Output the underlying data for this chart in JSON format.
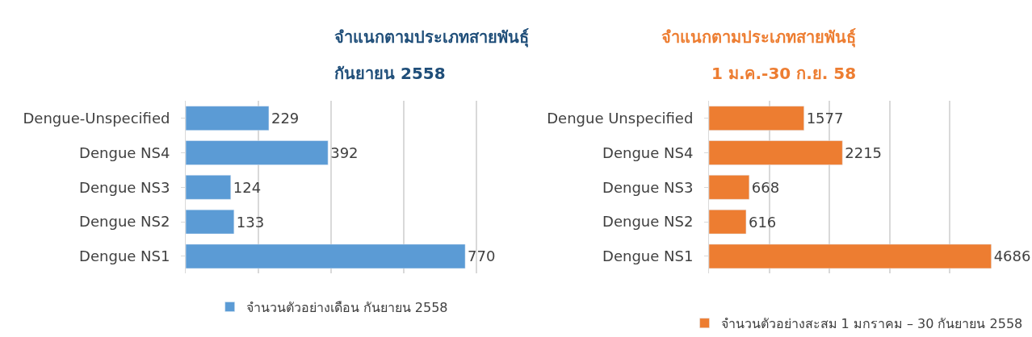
{
  "chart_data": [
    {
      "type": "bar",
      "orientation": "horizontal",
      "title": "จำแนกตามประเภทสายพันธุ์",
      "subtitle": "กันยายน 2558",
      "categories": [
        "Dengue-Unspecified",
        "Dengue NS4",
        "Dengue NS3",
        "Dengue NS2",
        "Dengue NS1"
      ],
      "series": [
        {
          "name": "จำนวนตัวอย่างเดือน กันยายน 2558",
          "color": "#5b9bd5",
          "values": [
            229,
            392,
            124,
            133,
            770
          ]
        }
      ],
      "grid": "x",
      "legend": "bottom",
      "data_labels": true,
      "tick_labels": "y"
    },
    {
      "type": "bar",
      "orientation": "horizontal",
      "title": "จำแนกตามประเภทสายพันธุ์",
      "subtitle": "1 ม.ค.-30 ก.ย. 58",
      "categories": [
        "Dengue Unspecified",
        "Dengue NS4",
        "Dengue NS3",
        "Dengue NS2",
        "Dengue NS1"
      ],
      "series": [
        {
          "name": "จำนวนตัวอย่างสะสม 1 มกราคม – 30 กันยายน 2558",
          "color": "#ed7d31",
          "values": [
            1577,
            2215,
            668,
            616,
            4686
          ]
        }
      ],
      "grid": "x",
      "legend": "bottom",
      "data_labels": true,
      "tick_labels": "y"
    }
  ]
}
